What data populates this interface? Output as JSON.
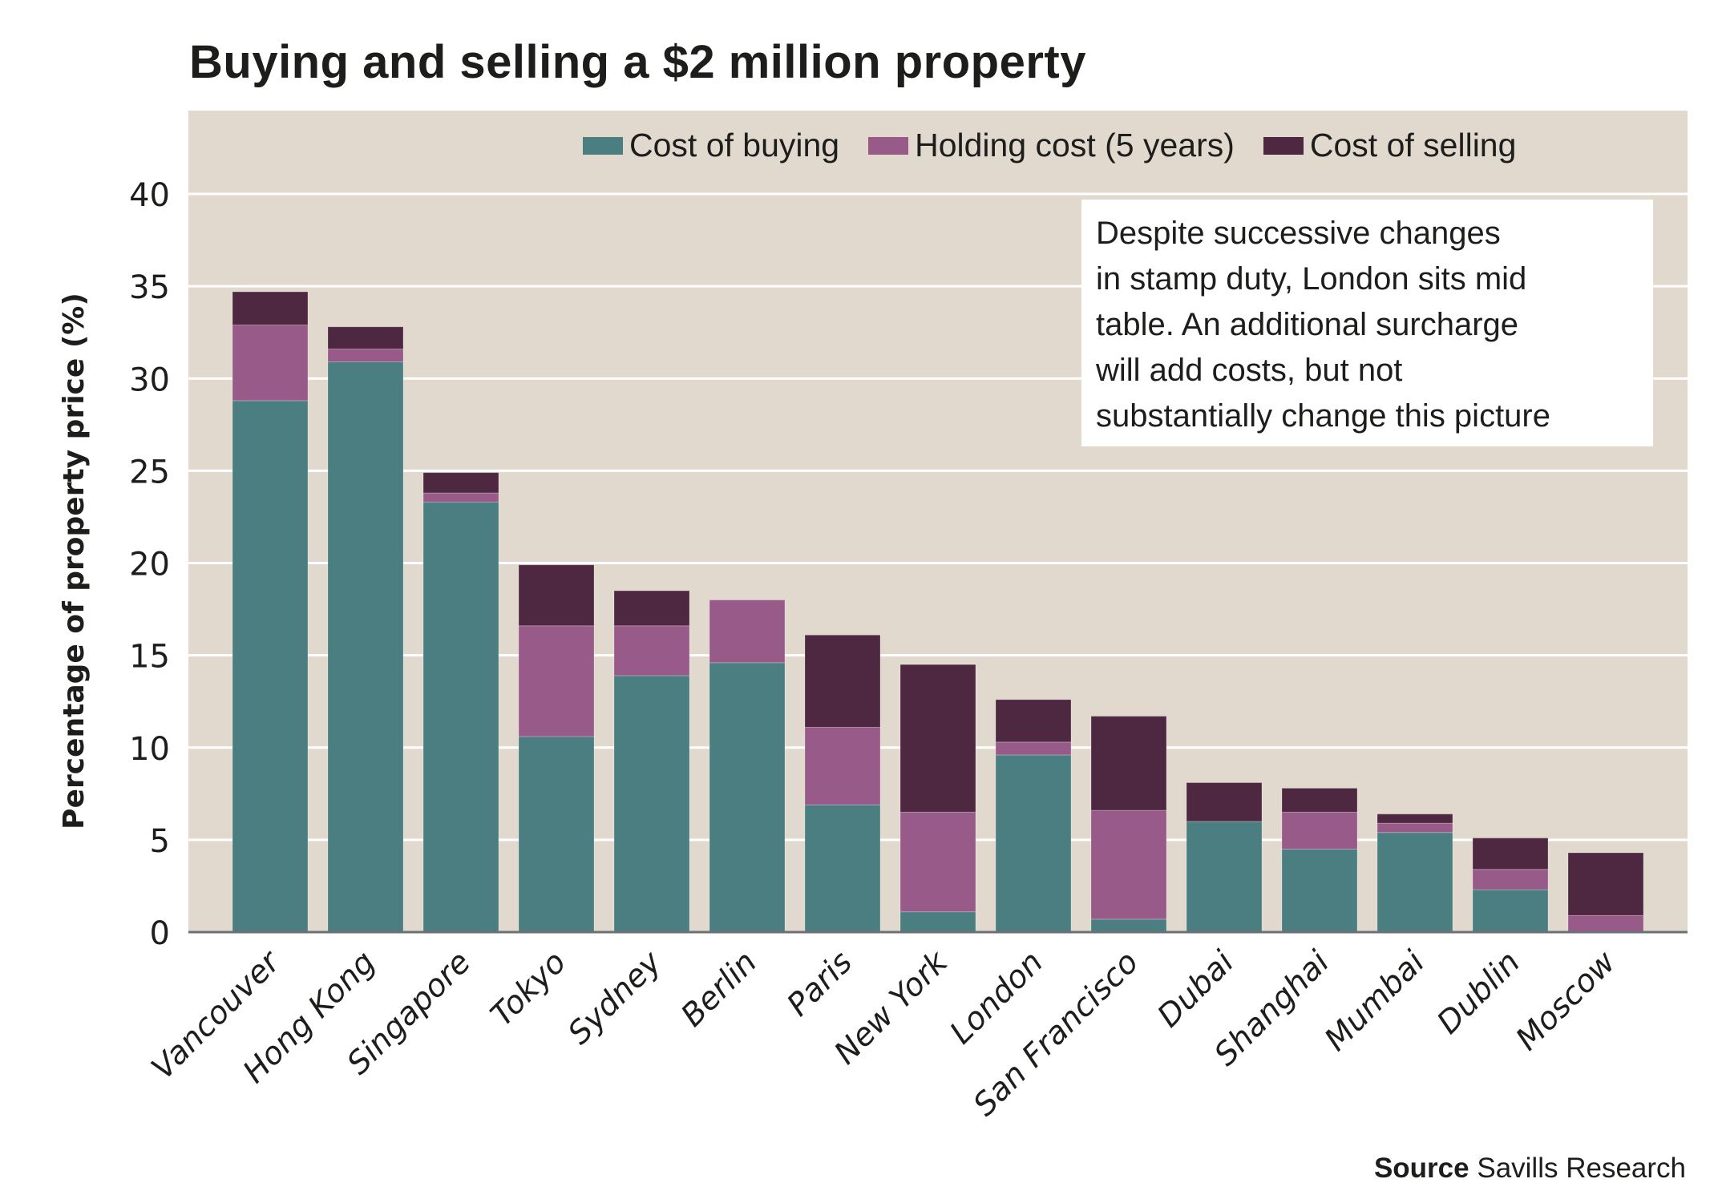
{
  "title": "Buying and selling a $2 million property",
  "annotation": {
    "lines": [
      "Despite successive changes",
      "in stamp duty, London sits mid",
      "table. An additional surcharge",
      "will add costs, but not",
      "substantially change this picture"
    ]
  },
  "source": {
    "label": "Source",
    "text": "Savills Research"
  },
  "colors": {
    "panel_bg": "#e1d9ce",
    "gridline": "#ffffff",
    "axis": "#6b7175",
    "buying": "#4a7e80",
    "holding": "#985a89",
    "selling": "#4e2840"
  },
  "chart_data": {
    "type": "bar",
    "stacked": true,
    "title": "Buying and selling a $2 million property",
    "xlabel": "",
    "ylabel": "Percentage of property price (%)",
    "ylim": [
      0,
      40
    ],
    "yticks": [
      0,
      5,
      10,
      15,
      20,
      25,
      30,
      35,
      40
    ],
    "grid": true,
    "legend_position": "top-right",
    "categories": [
      "Vancouver",
      "Hong Kong",
      "Singapore",
      "Tokyo",
      "Sydney",
      "Berlin",
      "Paris",
      "New York",
      "London",
      "San Francisco",
      "Dubai",
      "Shanghai",
      "Mumbai",
      "Dublin",
      "Moscow"
    ],
    "series": [
      {
        "name": "Cost of buying",
        "key": "buying",
        "values": [
          28.8,
          30.9,
          23.3,
          10.6,
          13.9,
          14.6,
          6.9,
          1.1,
          9.6,
          0.7,
          6.0,
          4.5,
          5.4,
          2.3,
          0.0
        ]
      },
      {
        "name": "Holding cost (5 years)",
        "key": "holding",
        "values": [
          4.1,
          0.7,
          0.5,
          6.0,
          2.7,
          3.4,
          4.2,
          5.4,
          0.7,
          5.9,
          0.0,
          2.0,
          0.5,
          1.1,
          0.9
        ]
      },
      {
        "name": "Cost of selling",
        "key": "selling",
        "values": [
          1.8,
          1.2,
          1.1,
          3.3,
          1.9,
          0.0,
          5.0,
          8.0,
          2.3,
          5.1,
          2.1,
          1.3,
          0.5,
          1.7,
          3.4
        ]
      }
    ]
  }
}
